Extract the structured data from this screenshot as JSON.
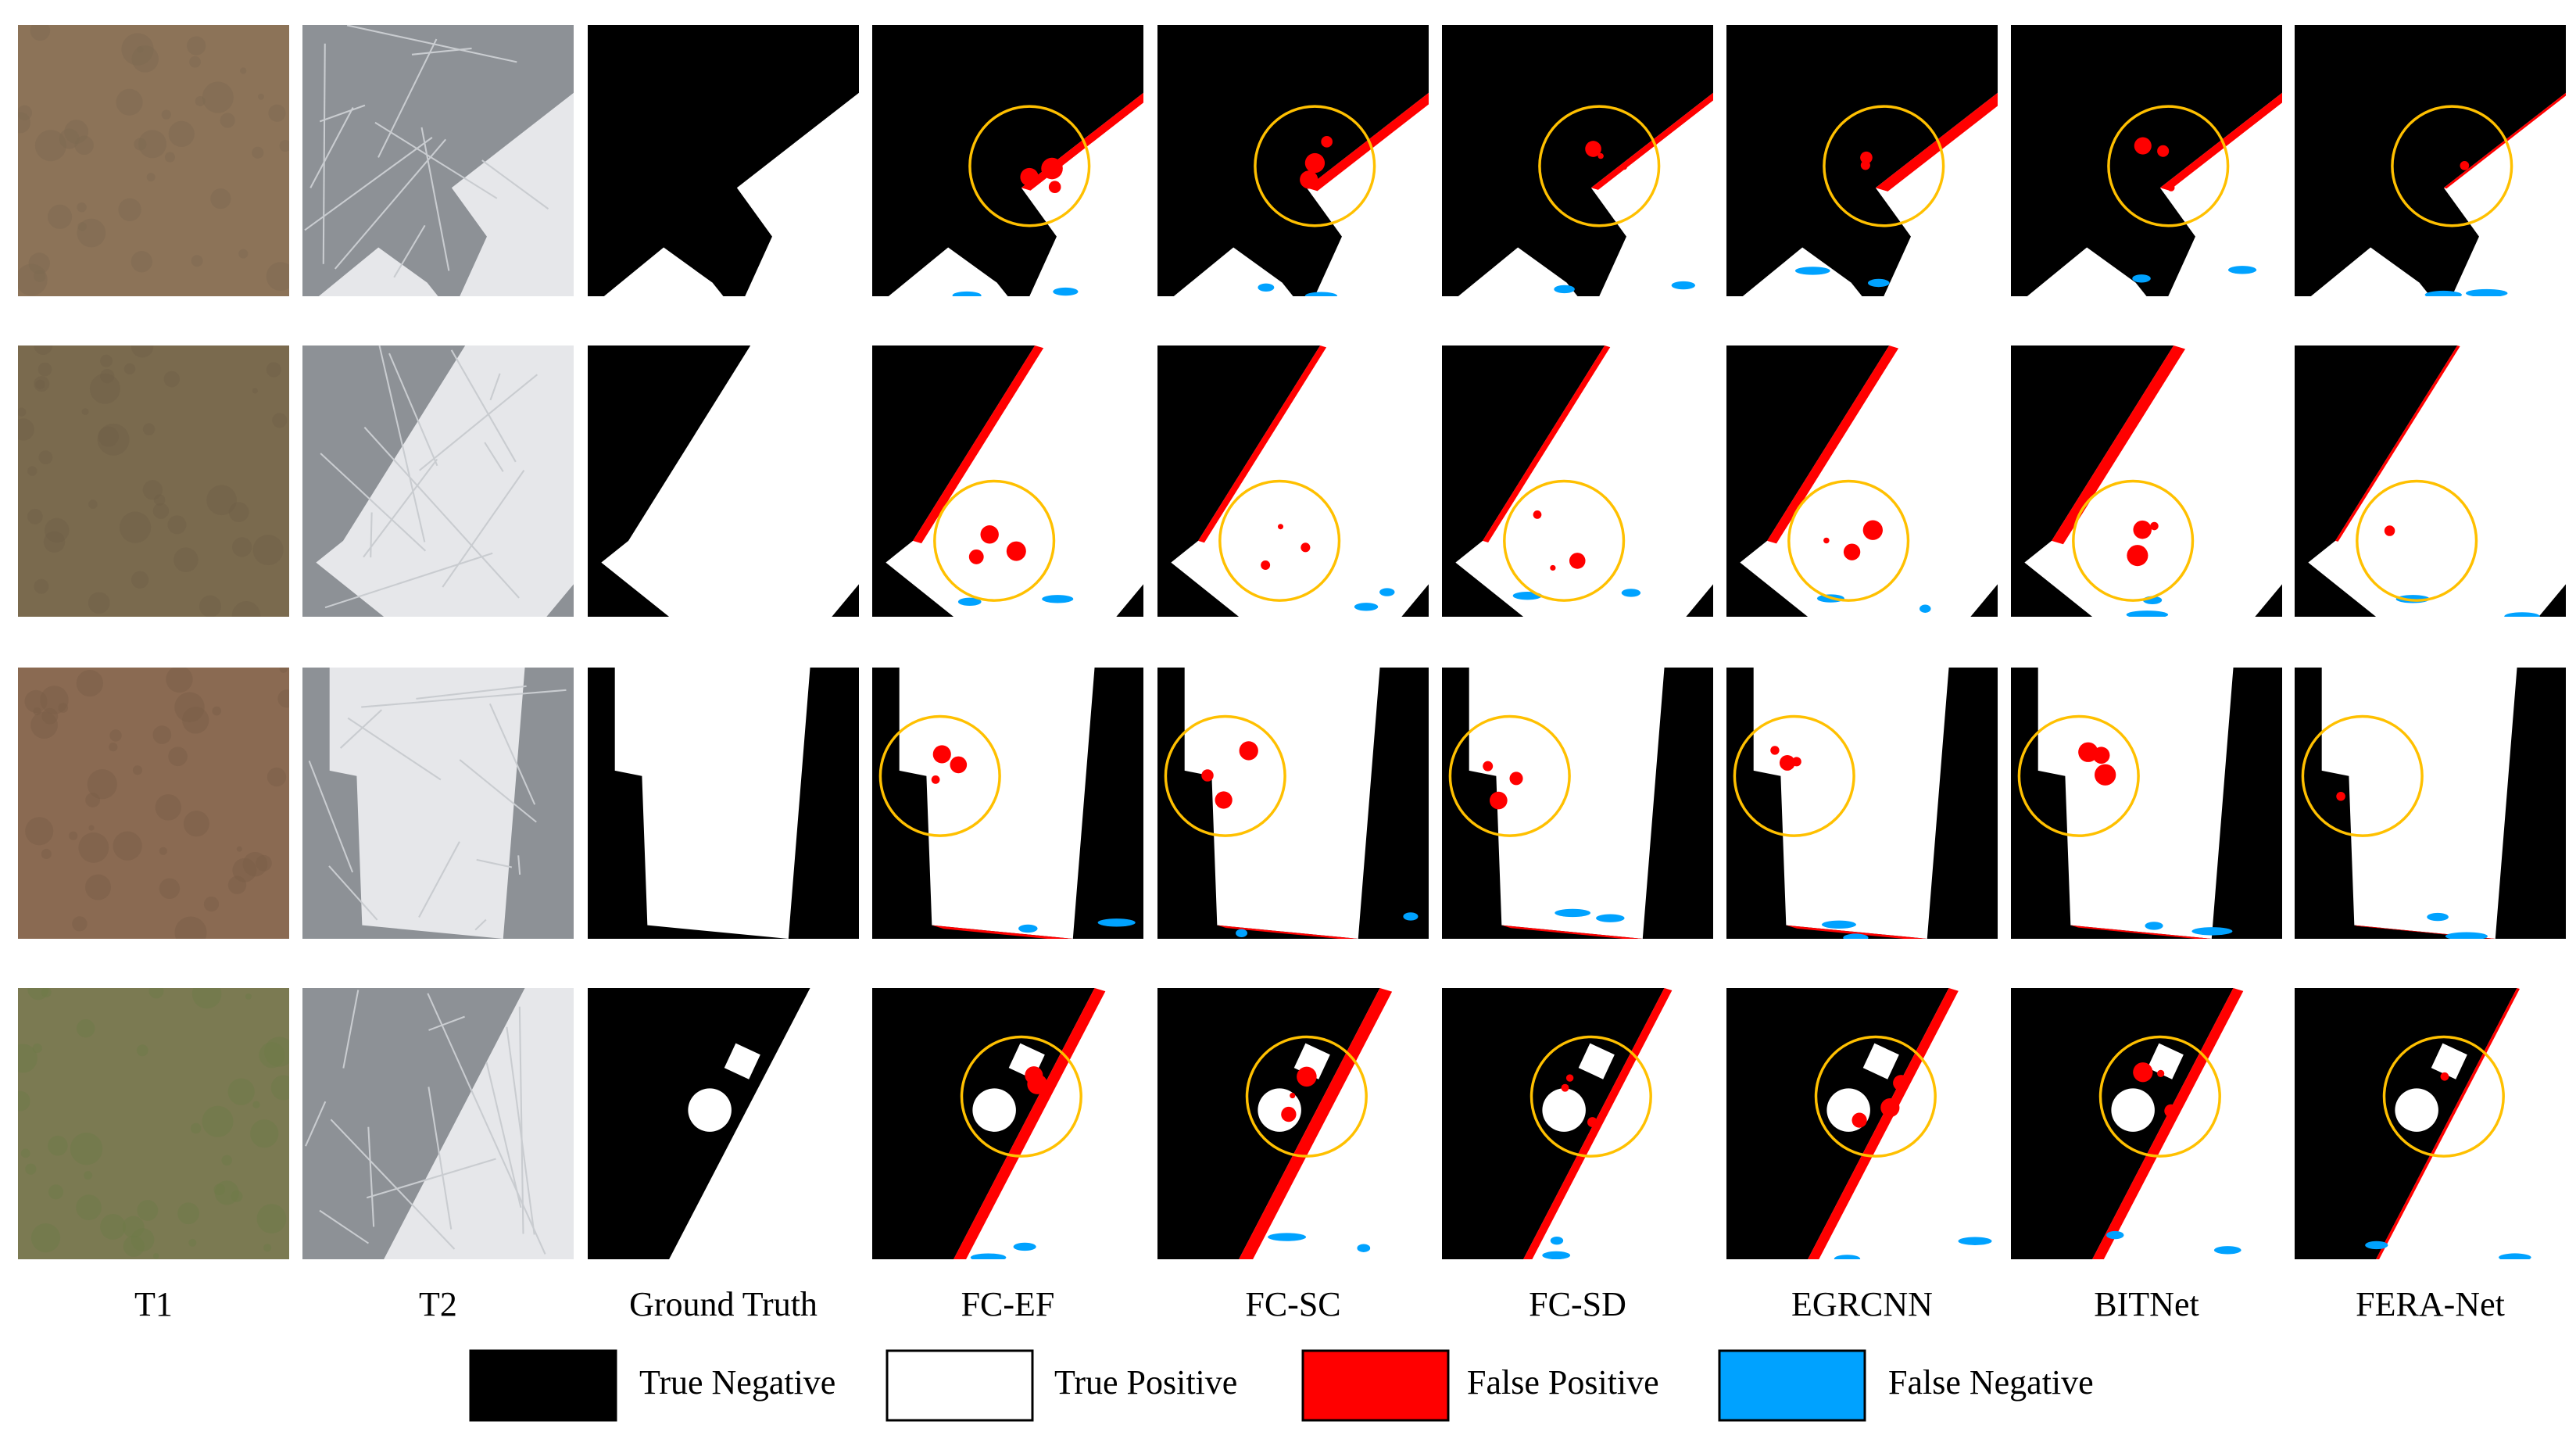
{
  "columns": [
    "T1",
    "T2",
    "Ground Truth",
    "FC-EF",
    "FC-SC",
    "FC-SD",
    "EGRCNN",
    "BITNet",
    "FERA-Net"
  ],
  "legend": [
    "True Negative",
    "True Positive",
    "False Positive",
    "False Negative"
  ]
}
